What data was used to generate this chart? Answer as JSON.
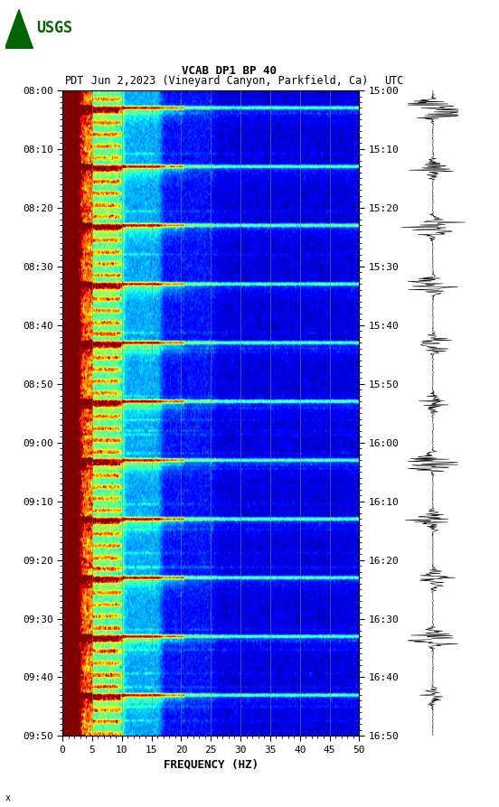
{
  "title_line1": "VCAB DP1 BP 40",
  "title_line2_left": "PDT",
  "title_line2_mid": "Jun 2,2023 (Vineyard Canyon, Parkfield, Ca)",
  "title_line2_right": "UTC",
  "xlabel": "FREQUENCY (HZ)",
  "freq_min": 0,
  "freq_max": 50,
  "left_yticks": [
    "08:00",
    "08:10",
    "08:20",
    "08:30",
    "08:40",
    "08:50",
    "09:00",
    "09:10",
    "09:20",
    "09:30",
    "09:40",
    "09:50"
  ],
  "right_yticks": [
    "15:00",
    "15:10",
    "15:20",
    "15:30",
    "15:40",
    "15:50",
    "16:00",
    "16:10",
    "16:20",
    "16:30",
    "16:40",
    "16:50"
  ],
  "xticks": [
    0,
    5,
    10,
    15,
    20,
    25,
    30,
    35,
    40,
    45,
    50
  ],
  "fig_width": 5.52,
  "fig_height": 8.93,
  "background_color": "#ffffff",
  "usgs_green": "#006400",
  "grid_color": "#888888",
  "grid_alpha": 0.6,
  "num_time_bins": 660,
  "num_freq_bins": 390
}
